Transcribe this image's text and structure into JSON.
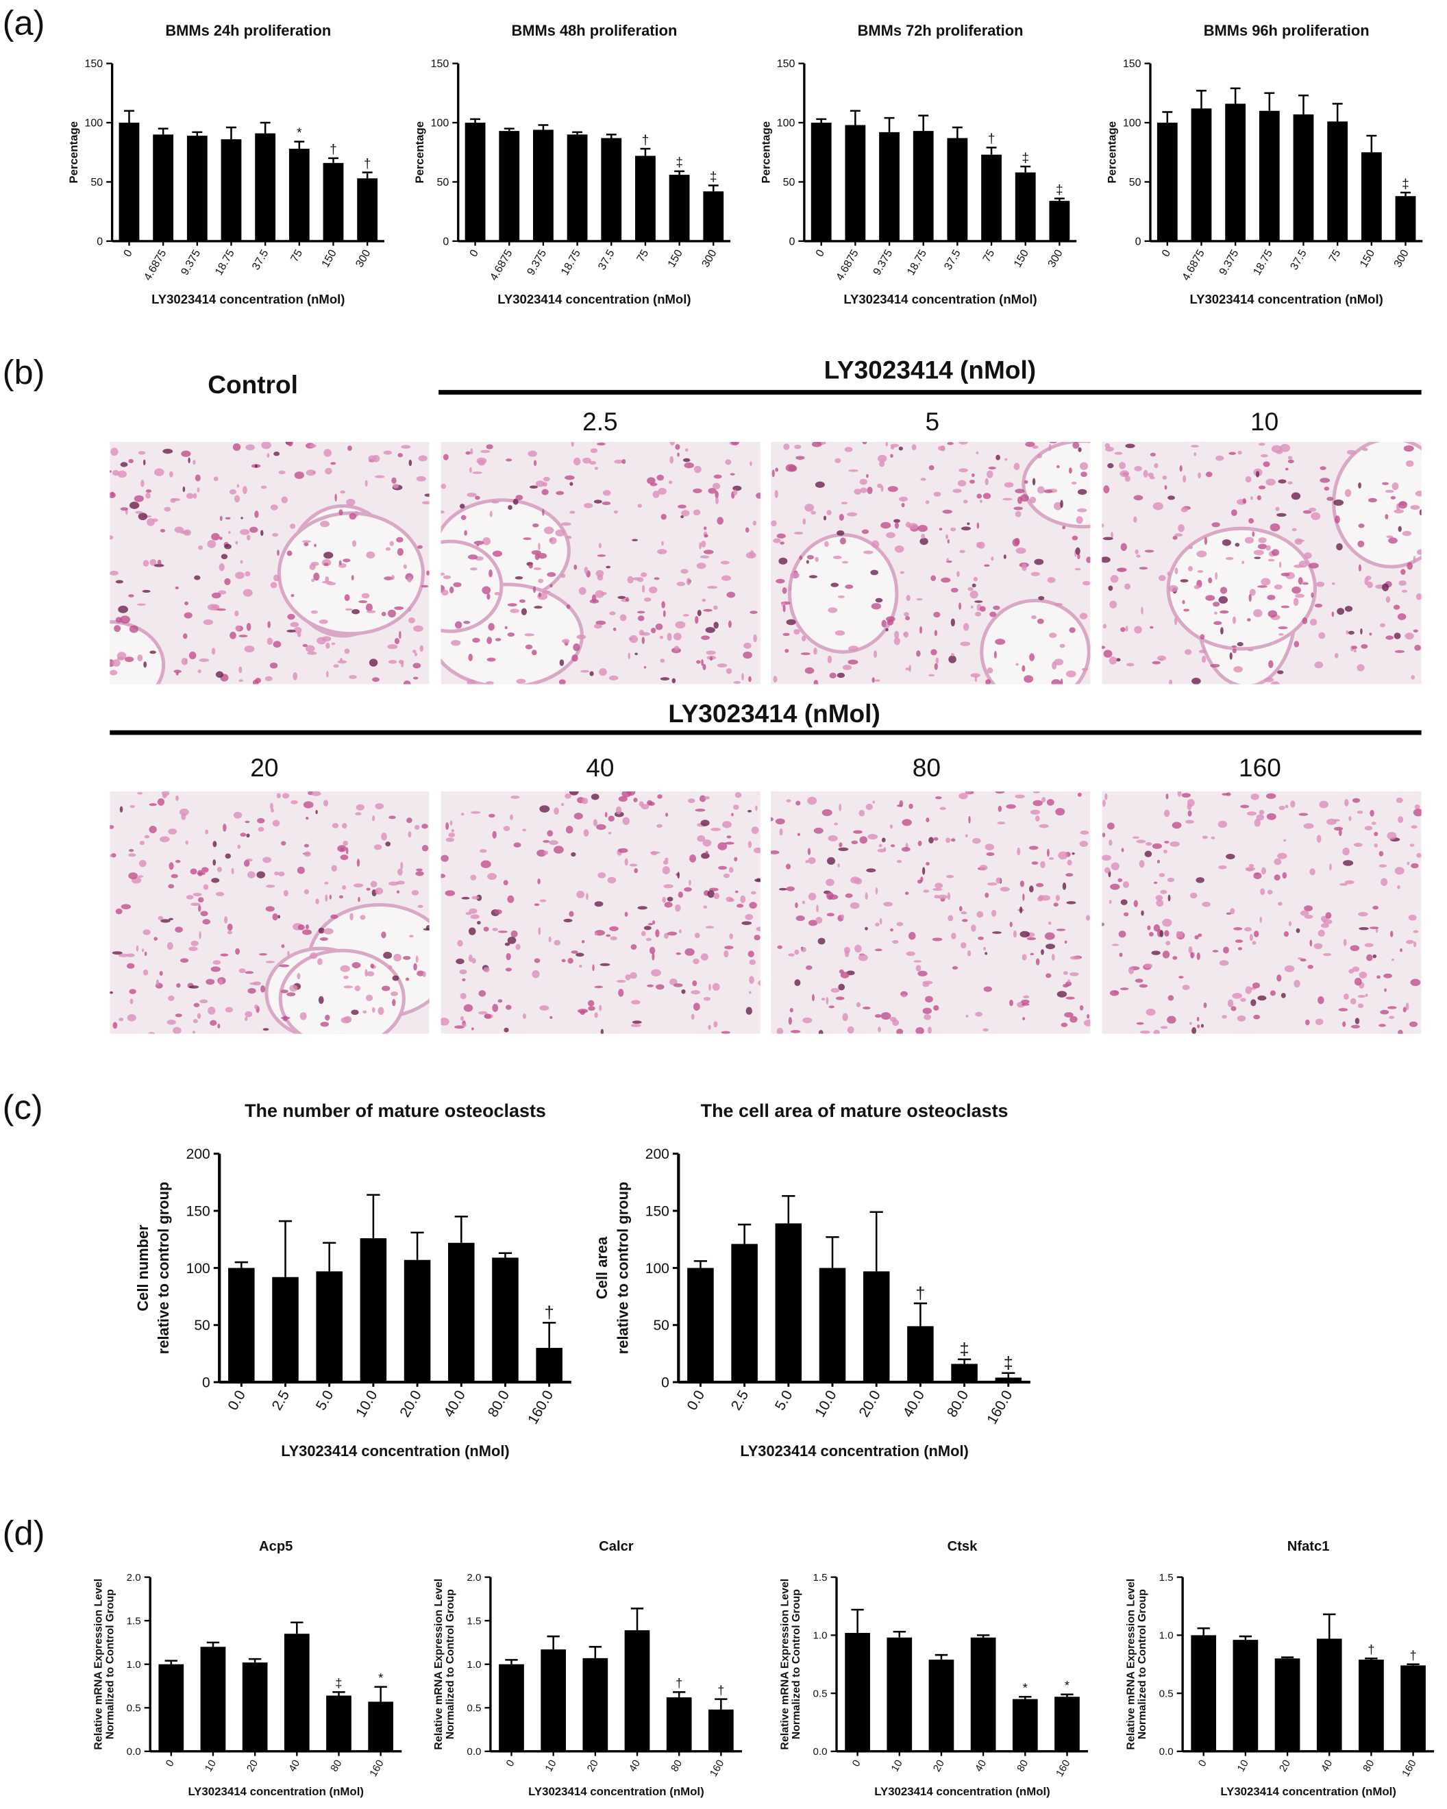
{
  "panels": {
    "a": "(a)",
    "b": "(b)",
    "c": "(c)",
    "d": "(d)"
  },
  "micrographs": {
    "control_label": "Control",
    "row1_header": "LY3023414 (nMol)",
    "row1_doses": [
      "2.5",
      "5",
      "10"
    ],
    "row2_header": "LY3023414 (nMol)",
    "row2_doses": [
      "20",
      "40",
      "80",
      "160"
    ]
  },
  "chart_data": [
    {
      "type": "bar",
      "title": "BMMs 24h proliferation",
      "xlabel": "LY3023414 concentration (nMol)",
      "ylabel": "Percentage",
      "categories": [
        "0",
        "4.6875",
        "9.375",
        "18.75",
        "37.5",
        "75",
        "150",
        "300"
      ],
      "values": [
        100,
        90,
        89,
        86,
        91,
        78,
        66,
        53
      ],
      "errors": [
        10,
        5,
        3,
        10,
        9,
        6,
        4,
        5
      ],
      "annotations": [
        null,
        null,
        null,
        null,
        null,
        "*",
        "†",
        "†"
      ],
      "color": "#000000",
      "ylim": [
        0,
        150
      ],
      "yticks": [
        0,
        50,
        100,
        150
      ]
    },
    {
      "type": "bar",
      "title": "BMMs 48h proliferation",
      "xlabel": "LY3023414 concentration (nMol)",
      "ylabel": "Percentage",
      "categories": [
        "0",
        "4.6875",
        "9.375",
        "18.75",
        "37.5",
        "75",
        "150",
        "300"
      ],
      "values": [
        100,
        93,
        94,
        90,
        87,
        72,
        56,
        42
      ],
      "errors": [
        3,
        2,
        4,
        2,
        3,
        6,
        3,
        5
      ],
      "annotations": [
        null,
        null,
        null,
        null,
        null,
        "†",
        "‡",
        "‡"
      ],
      "color": "#000000",
      "ylim": [
        0,
        150
      ],
      "yticks": [
        0,
        50,
        100,
        150
      ]
    },
    {
      "type": "bar",
      "title": "BMMs 72h proliferation",
      "xlabel": "LY3023414 concentration (nMol)",
      "ylabel": "Percentage",
      "categories": [
        "0",
        "4.6875",
        "9.375",
        "18.75",
        "37.5",
        "75",
        "150",
        "300"
      ],
      "values": [
        100,
        98,
        92,
        93,
        87,
        73,
        58,
        34
      ],
      "errors": [
        3,
        12,
        12,
        13,
        9,
        6,
        5,
        2
      ],
      "annotations": [
        null,
        null,
        null,
        null,
        null,
        "†",
        "‡",
        "‡"
      ],
      "color": "#000000",
      "ylim": [
        0,
        150
      ],
      "yticks": [
        0,
        50,
        100,
        150
      ]
    },
    {
      "type": "bar",
      "title": "BMMs 96h proliferation",
      "xlabel": "LY3023414 concentration (nMol)",
      "ylabel": "Percentage",
      "categories": [
        "0",
        "4.6875",
        "9.375",
        "18.75",
        "37.5",
        "75",
        "150",
        "300"
      ],
      "values": [
        100,
        112,
        116,
        110,
        107,
        101,
        75,
        38
      ],
      "errors": [
        9,
        15,
        13,
        15,
        16,
        15,
        14,
        3
      ],
      "annotations": [
        null,
        null,
        null,
        null,
        null,
        null,
        null,
        "‡"
      ],
      "color": "#000000",
      "ylim": [
        0,
        150
      ],
      "yticks": [
        0,
        50,
        100,
        150
      ]
    },
    {
      "type": "bar",
      "title": "The number of mature osteoclasts",
      "xlabel": "LY3023414 concentration (nMol)",
      "ylabel": [
        "Cell number",
        "relative to control group"
      ],
      "categories": [
        "0.0",
        "2.5",
        "5.0",
        "10.0",
        "20.0",
        "40.0",
        "80.0",
        "160.0"
      ],
      "values": [
        100,
        92,
        97,
        126,
        107,
        122,
        109,
        30
      ],
      "errors": [
        5,
        49,
        25,
        38,
        24,
        23,
        4,
        22
      ],
      "annotations": [
        null,
        null,
        null,
        null,
        null,
        null,
        null,
        "†"
      ],
      "color": "#000000",
      "ylim": [
        0,
        200
      ],
      "yticks": [
        0,
        50,
        100,
        150,
        200
      ]
    },
    {
      "type": "bar",
      "title": "The cell area of mature osteoclasts",
      "xlabel": "LY3023414 concentration (nMol)",
      "ylabel": [
        "Cell area",
        "relative to control group"
      ],
      "categories": [
        "0.0",
        "2.5",
        "5.0",
        "10.0",
        "20.0",
        "40.0",
        "80.0",
        "160.0"
      ],
      "values": [
        100,
        121,
        139,
        100,
        97,
        49,
        16,
        4
      ],
      "errors": [
        6,
        17,
        24,
        27,
        52,
        20,
        4,
        4
      ],
      "annotations": [
        null,
        null,
        null,
        null,
        null,
        "†",
        "‡",
        "‡"
      ],
      "color": "#000000",
      "ylim": [
        0,
        200
      ],
      "yticks": [
        0,
        50,
        100,
        150,
        200
      ]
    },
    {
      "type": "bar",
      "title": "Acp5",
      "xlabel": "LY3023414 concentration (nMol)",
      "ylabel": [
        "Relative mRNA Expression Level",
        "Normalized to Control Group"
      ],
      "categories": [
        "0",
        "10",
        "20",
        "40",
        "80",
        "160"
      ],
      "values": [
        1.0,
        1.2,
        1.02,
        1.35,
        0.64,
        0.57
      ],
      "errors": [
        0.04,
        0.05,
        0.04,
        0.13,
        0.04,
        0.17
      ],
      "annotations": [
        null,
        null,
        null,
        null,
        "‡",
        "*"
      ],
      "color": "#000000",
      "ylim": [
        0,
        2
      ],
      "yticks": [
        {
          "value": 0,
          "label": "0.0"
        },
        {
          "value": 0.5,
          "label": "0.5"
        },
        {
          "value": 1,
          "label": "1.0"
        },
        {
          "value": 1.5,
          "label": "1.5"
        },
        {
          "value": 2,
          "label": "2.0"
        }
      ]
    },
    {
      "type": "bar",
      "title": "Calcr",
      "xlabel": "LY3023414 concentration (nMol)",
      "ylabel": [
        "Relative mRNA Expression Level",
        "Normalized to Control Group"
      ],
      "categories": [
        "0",
        "10",
        "20",
        "40",
        "80",
        "160"
      ],
      "values": [
        1.0,
        1.17,
        1.07,
        1.39,
        0.62,
        0.48
      ],
      "errors": [
        0.05,
        0.15,
        0.13,
        0.25,
        0.06,
        0.12
      ],
      "annotations": [
        null,
        null,
        null,
        null,
        "†",
        "†"
      ],
      "color": "#000000",
      "ylim": [
        0,
        2
      ],
      "yticks": [
        {
          "value": 0,
          "label": "0.0"
        },
        {
          "value": 0.5,
          "label": "0.5"
        },
        {
          "value": 1,
          "label": "1.0"
        },
        {
          "value": 1.5,
          "label": "1.5"
        },
        {
          "value": 2,
          "label": "2.0"
        }
      ]
    },
    {
      "type": "bar",
      "title": "Ctsk",
      "xlabel": "LY3023414 concentration (nMol)",
      "ylabel": [
        "Relative mRNA Expression Level",
        "Normalized to Control Group"
      ],
      "categories": [
        "0",
        "10",
        "20",
        "40",
        "80",
        "160"
      ],
      "values": [
        1.02,
        0.98,
        0.79,
        0.98,
        0.45,
        0.47
      ],
      "errors": [
        0.2,
        0.05,
        0.04,
        0.02,
        0.02,
        0.02
      ],
      "annotations": [
        null,
        null,
        null,
        null,
        "*",
        "*"
      ],
      "color": "#000000",
      "ylim": [
        0,
        1.5
      ],
      "yticks": [
        {
          "value": 0,
          "label": "0.0"
        },
        {
          "value": 0.5,
          "label": "0.5"
        },
        {
          "value": 1,
          "label": "1.0"
        },
        {
          "value": 1.5,
          "label": "1.5"
        }
      ]
    },
    {
      "type": "bar",
      "title": "Nfatc1",
      "xlabel": "LY3023414 concentration (nMol)",
      "ylabel": [
        "Relative mRNA Expression Level",
        "Normalized to Control Group"
      ],
      "categories": [
        "0",
        "10",
        "20",
        "40",
        "80",
        "160"
      ],
      "values": [
        1.0,
        0.96,
        0.8,
        0.97,
        0.79,
        0.74
      ],
      "errors": [
        0.06,
        0.03,
        0.01,
        0.21,
        0.01,
        0.01
      ],
      "annotations": [
        null,
        null,
        null,
        null,
        "†",
        "†"
      ],
      "color": "#000000",
      "ylim": [
        0,
        1.5
      ],
      "yticks": [
        {
          "value": 0,
          "label": "0.0"
        },
        {
          "value": 0.5,
          "label": "0.5"
        },
        {
          "value": 1,
          "label": "1.0"
        },
        {
          "value": 1.5,
          "label": "1.5"
        }
      ]
    }
  ]
}
